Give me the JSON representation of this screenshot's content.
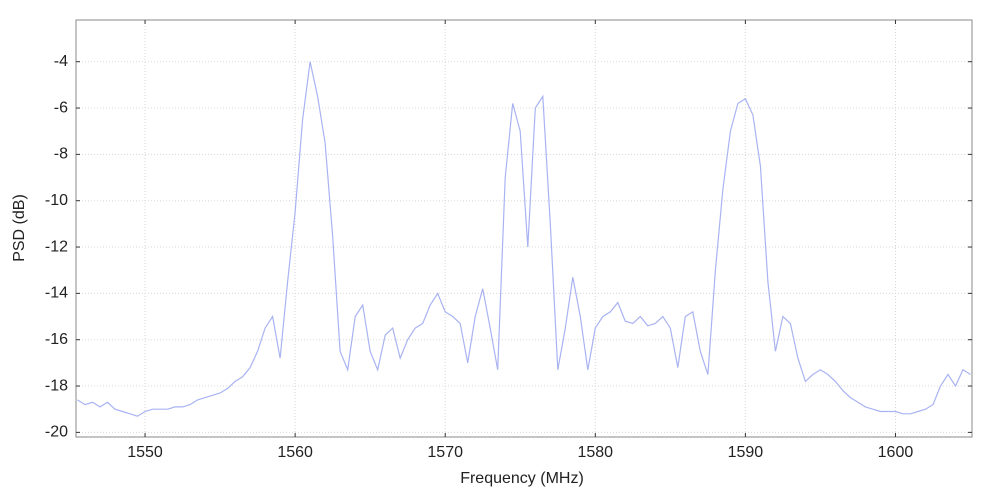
{
  "chart_data": {
    "type": "line",
    "xlabel": "Frequency (MHz)",
    "ylabel": "PSD (dB)",
    "x": [
      1545.5,
      1546,
      1546.5,
      1547,
      1547.5,
      1548,
      1548.5,
      1549,
      1549.5,
      1550,
      1550.5,
      1551,
      1551.5,
      1552,
      1552.5,
      1553,
      1553.5,
      1554,
      1554.5,
      1555,
      1555.5,
      1556,
      1556.5,
      1557,
      1557.5,
      1558,
      1558.5,
      1559,
      1559.5,
      1560,
      1560.5,
      1561,
      1561.5,
      1562,
      1562.5,
      1563,
      1563.5,
      1564,
      1564.5,
      1565,
      1565.5,
      1566,
      1566.5,
      1567,
      1567.5,
      1568,
      1568.5,
      1569,
      1569.5,
      1570,
      1570.5,
      1571,
      1571.5,
      1572,
      1572.5,
      1573,
      1573.5,
      1574,
      1574.5,
      1575,
      1575.5,
      1576,
      1576.5,
      1577,
      1577.5,
      1578,
      1578.5,
      1579,
      1579.5,
      1580,
      1580.5,
      1581,
      1581.5,
      1582,
      1582.5,
      1583,
      1583.5,
      1584,
      1584.5,
      1585,
      1585.5,
      1586,
      1586.5,
      1587,
      1587.5,
      1588,
      1588.5,
      1589,
      1589.5,
      1590,
      1590.5,
      1591,
      1591.5,
      1592,
      1592.5,
      1593,
      1593.5,
      1594,
      1594.5,
      1595,
      1595.5,
      1596,
      1596.5,
      1597,
      1597.5,
      1598,
      1598.5,
      1599,
      1599.5,
      1600,
      1600.5,
      1601,
      1601.5,
      1602,
      1602.5,
      1603,
      1603.5,
      1604,
      1604.5,
      1605
    ],
    "series": [
      {
        "name": "PSD",
        "color": "#a9b3f2",
        "values": [
          -18.6,
          -18.8,
          -18.7,
          -18.9,
          -18.7,
          -19.0,
          -19.1,
          -19.2,
          -19.3,
          -19.1,
          -19.0,
          -19.0,
          -19.0,
          -18.9,
          -18.9,
          -18.8,
          -18.6,
          -18.5,
          -18.4,
          -18.3,
          -18.1,
          -17.8,
          -17.6,
          -17.2,
          -16.5,
          -15.5,
          -15.0,
          -16.8,
          -13.5,
          -10.5,
          -6.5,
          -4.0,
          -5.5,
          -7.5,
          -11.5,
          -16.5,
          -17.3,
          -15.0,
          -14.5,
          -16.5,
          -17.3,
          -15.8,
          -15.5,
          -16.8,
          -16.0,
          -15.5,
          -15.3,
          -14.5,
          -14.0,
          -14.8,
          -15.0,
          -15.3,
          -17.0,
          -15.0,
          -13.8,
          -15.5,
          -17.3,
          -9.0,
          -5.8,
          -7.0,
          -12.0,
          -6.0,
          -5.5,
          -11.0,
          -17.3,
          -15.5,
          -13.3,
          -15.0,
          -17.3,
          -15.5,
          -15.0,
          -14.8,
          -14.4,
          -15.2,
          -15.3,
          -15.0,
          -15.4,
          -15.3,
          -15.0,
          -15.5,
          -17.2,
          -15.0,
          -14.8,
          -16.5,
          -17.5,
          -13.0,
          -9.5,
          -7.0,
          -5.8,
          -5.6,
          -6.3,
          -8.5,
          -13.5,
          -16.5,
          -15.0,
          -15.3,
          -16.8,
          -17.8,
          -17.5,
          -17.3,
          -17.5,
          -17.8,
          -18.2,
          -18.5,
          -18.7,
          -18.9,
          -19.0,
          -19.1,
          -19.1,
          -19.1,
          -19.2,
          -19.2,
          -19.1,
          -19.0,
          -18.8,
          -18.0,
          -17.5,
          -18.0,
          -17.3,
          -17.5
        ]
      }
    ],
    "xlim": [
      1545.4,
      1605.1
    ],
    "xticks": [
      1550,
      1560,
      1570,
      1580,
      1590,
      1600
    ],
    "ylim": [
      -20.2,
      -2.2
    ],
    "yticks": [
      -20,
      -18,
      -16,
      -14,
      -12,
      -10,
      -8,
      -6,
      -4
    ],
    "grid": true
  }
}
